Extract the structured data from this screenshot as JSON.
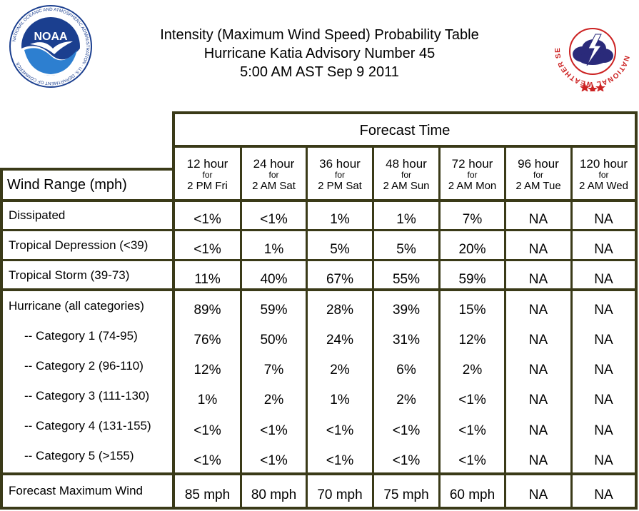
{
  "title": {
    "line1": "Intensity (Maximum Wind Speed) Probability Table",
    "line2": "Hurricane Katia Advisory Number 45",
    "line3": "5:00 AM AST Sep 9 2011"
  },
  "logos": {
    "left": {
      "icon": "noaa-logo",
      "text": "NOAA",
      "ring_text": "NATIONAL OCEANIC AND ATMOSPHERIC ADMINISTRATION · U.S. DEPARTMENT OF COMMERCE"
    },
    "right": {
      "icon": "nws-logo",
      "ring_text": "NATIONAL WEATHER SERVICE"
    }
  },
  "table": {
    "forecast_header": "Forecast Time",
    "row_header": "Wind Range (mph)",
    "columns": [
      {
        "hour": "12 hour",
        "for": "for",
        "time": "2 PM Fri"
      },
      {
        "hour": "24 hour",
        "for": "for",
        "time": "2 AM Sat"
      },
      {
        "hour": "36 hour",
        "for": "for",
        "time": "2 PM Sat"
      },
      {
        "hour": "48 hour",
        "for": "for",
        "time": "2 AM Sun"
      },
      {
        "hour": "72 hour",
        "for": "for",
        "time": "2 AM Mon"
      },
      {
        "hour": "96 hour",
        "for": "for",
        "time": "2 AM Tue"
      },
      {
        "hour": "120 hour",
        "for": "for",
        "time": "2 AM Wed"
      }
    ],
    "rows": [
      {
        "label": "Dissipated",
        "values": [
          "<1%",
          "<1%",
          "1%",
          "1%",
          "7%",
          "NA",
          "NA"
        ]
      },
      {
        "label": "Tropical Depression (<39)",
        "values": [
          "<1%",
          "1%",
          "5%",
          "5%",
          "20%",
          "NA",
          "NA"
        ]
      },
      {
        "label": "Tropical Storm (39-73)",
        "values": [
          "11%",
          "40%",
          "67%",
          "55%",
          "59%",
          "NA",
          "NA"
        ]
      },
      {
        "label": "Hurricane (all categories)",
        "values": [
          "89%",
          "59%",
          "28%",
          "39%",
          "15%",
          "NA",
          "NA"
        ]
      },
      {
        "label": "-- Category 1 (74-95)",
        "values": [
          "76%",
          "50%",
          "24%",
          "31%",
          "12%",
          "NA",
          "NA"
        ]
      },
      {
        "label": "-- Category 2 (96-110)",
        "values": [
          "12%",
          "7%",
          "2%",
          "6%",
          "2%",
          "NA",
          "NA"
        ]
      },
      {
        "label": "-- Category 3 (111-130)",
        "values": [
          "1%",
          "2%",
          "1%",
          "2%",
          "<1%",
          "NA",
          "NA"
        ]
      },
      {
        "label": "-- Category 4 (131-155)",
        "values": [
          "<1%",
          "<1%",
          "<1%",
          "<1%",
          "<1%",
          "NA",
          "NA"
        ]
      },
      {
        "label": "-- Category 5 (>155)",
        "values": [
          "<1%",
          "<1%",
          "<1%",
          "<1%",
          "<1%",
          "NA",
          "NA"
        ]
      },
      {
        "label": "Forecast Maximum Wind",
        "values": [
          "85 mph",
          "80 mph",
          "70 mph",
          "75 mph",
          "60 mph",
          "NA",
          "NA"
        ]
      }
    ]
  },
  "colors": {
    "border": "#3a3a18",
    "nws_red": "#cc2222",
    "noaa_blue": "#1b3f8f"
  }
}
